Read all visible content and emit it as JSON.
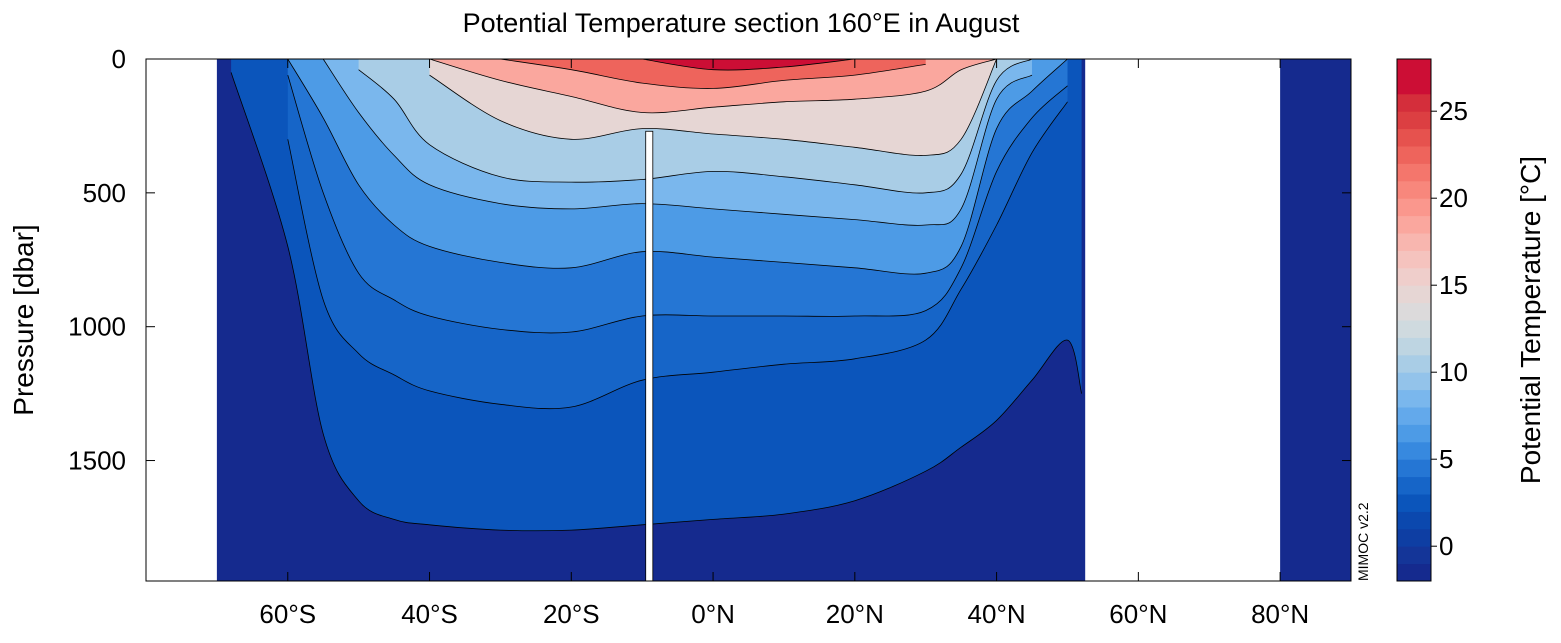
{
  "chart_data": {
    "type": "heatmap",
    "title": "Potential Temperature section 160°E in August",
    "ylabel": "Pressure [dbar]",
    "colorbar_label": "Potential Temperature [°C]",
    "watermark": "MIMOC v2.2",
    "xlim": [
      -80,
      90
    ],
    "ylim": [
      1950,
      0
    ],
    "x_ticks": [
      {
        "value": -60,
        "label": "60°S"
      },
      {
        "value": -40,
        "label": "40°S"
      },
      {
        "value": -20,
        "label": "20°S"
      },
      {
        "value": 0,
        "label": "0°N"
      },
      {
        "value": 20,
        "label": "20°N"
      },
      {
        "value": 40,
        "label": "40°N"
      },
      {
        "value": 60,
        "label": "60°N"
      },
      {
        "value": 80,
        "label": "80°N"
      }
    ],
    "y_ticks": [
      {
        "value": 0,
        "label": "0"
      },
      {
        "value": 500,
        "label": "500"
      },
      {
        "value": 1000,
        "label": "1000"
      },
      {
        "value": 1500,
        "label": "1500"
      }
    ],
    "colorbar_range": [
      -2,
      28
    ],
    "colorbar_ticks": [
      {
        "value": 0,
        "label": "0"
      },
      {
        "value": 5,
        "label": "5"
      },
      {
        "value": 10,
        "label": "10"
      },
      {
        "value": 15,
        "label": "15"
      },
      {
        "value": 20,
        "label": "20"
      },
      {
        "value": 25,
        "label": "25"
      }
    ],
    "colorbar_levels": [
      {
        "min": -2,
        "max": -1,
        "color": "#152a8e"
      },
      {
        "min": -1,
        "max": 0,
        "color": "#143598"
      },
      {
        "min": 0,
        "max": 1,
        "color": "#0e3ea3"
      },
      {
        "min": 1,
        "max": 2,
        "color": "#0b48ae"
      },
      {
        "min": 2,
        "max": 3,
        "color": "#0b55bb"
      },
      {
        "min": 3,
        "max": 4,
        "color": "#1665c8"
      },
      {
        "min": 4,
        "max": 5,
        "color": "#2576d4"
      },
      {
        "min": 5,
        "max": 6,
        "color": "#3789df"
      },
      {
        "min": 6,
        "max": 7,
        "color": "#4d9be6"
      },
      {
        "min": 7,
        "max": 8,
        "color": "#63a9eb"
      },
      {
        "min": 8,
        "max": 9,
        "color": "#7ab7ed"
      },
      {
        "min": 9,
        "max": 10,
        "color": "#93c3ea"
      },
      {
        "min": 10,
        "max": 11,
        "color": "#a9cde6"
      },
      {
        "min": 11,
        "max": 12,
        "color": "#bed5e2"
      },
      {
        "min": 12,
        "max": 13,
        "color": "#cfdadf"
      },
      {
        "min": 13,
        "max": 14,
        "color": "#dcdadb"
      },
      {
        "min": 14,
        "max": 15,
        "color": "#e6d6d4"
      },
      {
        "min": 15,
        "max": 16,
        "color": "#efcecb"
      },
      {
        "min": 16,
        "max": 17,
        "color": "#f5c3be"
      },
      {
        "min": 17,
        "max": 18,
        "color": "#f8b6af"
      },
      {
        "min": 18,
        "max": 19,
        "color": "#faa79e"
      },
      {
        "min": 19,
        "max": 20,
        "color": "#fa978d"
      },
      {
        "min": 20,
        "max": 21,
        "color": "#f8877c"
      },
      {
        "min": 21,
        "max": 22,
        "color": "#f4766c"
      },
      {
        "min": 22,
        "max": 23,
        "color": "#ee645c"
      },
      {
        "min": 23,
        "max": 24,
        "color": "#e6524e"
      },
      {
        "min": 24,
        "max": 25,
        "color": "#dc3f42"
      },
      {
        "min": 25,
        "max": 26,
        "color": "#d42e3b"
      },
      {
        "min": 26,
        "max": 28,
        "color": "#cc0e35"
      }
    ],
    "land_mask": [
      {
        "x_range": [
          -80,
          -70
        ],
        "depth_range": [
          0,
          1950
        ]
      },
      {
        "x_range": [
          52.5,
          80
        ],
        "depth_range": [
          0,
          1950
        ]
      },
      {
        "x_range": [
          -9.5,
          -8.5
        ],
        "depth_range": [
          270,
          1950
        ]
      }
    ],
    "isotherm_depths": {
      "x": [
        -68,
        -60,
        -55,
        -50,
        -45,
        -40,
        -30,
        -20,
        -10,
        0,
        10,
        20,
        30,
        35,
        40,
        45,
        50,
        52
      ],
      "levels": [
        {
          "temp": 26,
          "depth": [
            null,
            null,
            null,
            null,
            null,
            null,
            null,
            null,
            0,
            40,
            30,
            0,
            null,
            null,
            null,
            null,
            null,
            null
          ]
        },
        {
          "temp": 22,
          "depth": [
            null,
            null,
            null,
            null,
            null,
            null,
            0,
            40,
            90,
            110,
            80,
            60,
            20,
            null,
            null,
            null,
            null,
            null
          ]
        },
        {
          "temp": 18,
          "depth": [
            null,
            null,
            null,
            null,
            null,
            0,
            80,
            140,
            200,
            180,
            160,
            150,
            120,
            40,
            0,
            null,
            null,
            null
          ]
        },
        {
          "temp": 14,
          "depth": [
            null,
            null,
            null,
            null,
            null,
            60,
            230,
            300,
            260,
            280,
            300,
            330,
            360,
            300,
            0,
            null,
            null,
            null
          ]
        },
        {
          "temp": 10,
          "depth": [
            null,
            null,
            null,
            40,
            150,
            320,
            440,
            460,
            450,
            420,
            440,
            470,
            500,
            430,
            80,
            0,
            null,
            null
          ]
        },
        {
          "temp": 8,
          "depth": [
            null,
            null,
            0,
            200,
            360,
            470,
            540,
            560,
            540,
            560,
            580,
            600,
            620,
            560,
            150,
            60,
            null,
            null
          ]
        },
        {
          "temp": 6,
          "depth": [
            null,
            0,
            220,
            470,
            620,
            700,
            760,
            780,
            720,
            740,
            760,
            780,
            800,
            700,
            260,
            120,
            0,
            null
          ]
        },
        {
          "temp": 4,
          "depth": [
            null,
            60,
            500,
            800,
            900,
            960,
            1010,
            1020,
            960,
            960,
            960,
            960,
            940,
            780,
            420,
            220,
            100,
            null
          ]
        },
        {
          "temp": 3,
          "depth": [
            null,
            300,
            900,
            1100,
            1180,
            1240,
            1290,
            1300,
            1200,
            1170,
            1140,
            1120,
            1050,
            860,
            620,
            350,
            160,
            null
          ]
        },
        {
          "temp": 2,
          "depth": [
            50,
            700,
            1400,
            1650,
            1720,
            1740,
            1760,
            1760,
            1740,
            1720,
            1700,
            1650,
            1540,
            1450,
            1350,
            1200,
            1050,
            1250
          ]
        }
      ]
    }
  }
}
